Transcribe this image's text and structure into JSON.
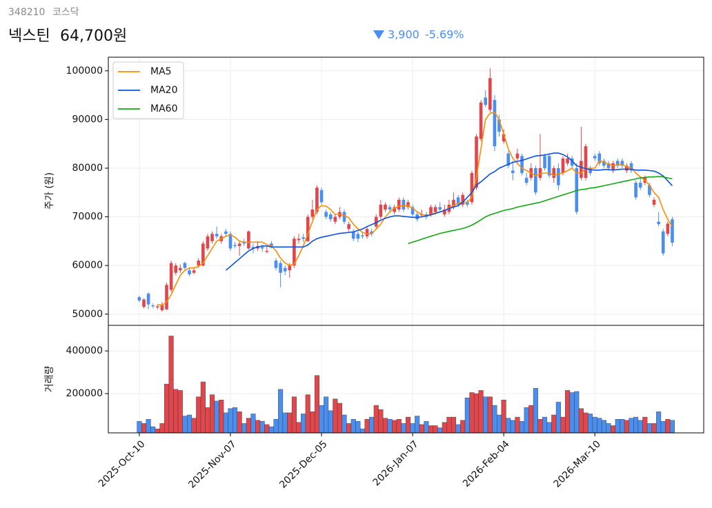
{
  "header": {
    "code": "348210",
    "market": "코스닥",
    "name": "넥스틴",
    "price": "64,700원",
    "change": "3,900",
    "change_pct": "-5.69%"
  },
  "chart_data": {
    "type": "candlestick",
    "ylabel": "주가 (원)",
    "volume_label": "거래량",
    "up_color": "#e0474c",
    "down_color": "#4a8ef0",
    "open": [
      53500,
      51500,
      54200,
      51800,
      51400,
      50800,
      51000,
      55000,
      58500,
      59000,
      60500,
      59000,
      58500,
      60000,
      60000,
      63500,
      65000,
      66500,
      65000,
      67000,
      66500,
      64200,
      64000,
      64800,
      63500,
      63800,
      63500,
      63800,
      62800,
      64500,
      61000,
      60500,
      59500,
      59000,
      60000,
      65200,
      65800,
      65000,
      70000,
      71000,
      75500,
      71000,
      70500,
      69000,
      70000,
      71000,
      67500,
      67000,
      66500,
      66200,
      66000,
      67000,
      68000,
      70000,
      71500,
      72000,
      71000,
      71500,
      73500,
      72000,
      72000,
      70500,
      70300,
      70500,
      70500,
      71000,
      72000,
      70500,
      71000,
      72000,
      74000,
      72500,
      73000,
      73000,
      76000,
      86000,
      94500,
      92000,
      94000,
      90000,
      85500,
      83000,
      79500,
      82000,
      82500,
      78000,
      78000,
      80000,
      78000,
      82500,
      82500,
      78000,
      80000,
      79000,
      81000,
      82000,
      80000,
      78000,
      78000,
      80000,
      82500,
      83000,
      81500,
      81000,
      79500,
      81500,
      81500,
      79500,
      81000,
      77000,
      77000,
      77000,
      76500,
      72500,
      69000,
      67000,
      66500,
      69500
    ],
    "high": [
      53800,
      53300,
      54500,
      52200,
      51900,
      52500,
      56500,
      61000,
      60500,
      60200,
      60800,
      59500,
      59500,
      61500,
      65000,
      66500,
      67000,
      68000,
      66500,
      67500,
      67000,
      64800,
      65000,
      65500,
      67200,
      64500,
      65000,
      64300,
      64000,
      65000,
      61500,
      61000,
      60000,
      60500,
      66000,
      66500,
      66500,
      70500,
      73500,
      76500,
      76000,
      71500,
      71000,
      70500,
      72000,
      71500,
      69000,
      67500,
      67000,
      66800,
      68000,
      67500,
      70500,
      73500,
      73000,
      72500,
      72500,
      74000,
      74000,
      73500,
      72500,
      71000,
      71500,
      71000,
      72500,
      72500,
      73000,
      72500,
      73500,
      75000,
      74500,
      75000,
      73500,
      79500,
      87000,
      94000,
      96000,
      100500,
      95000,
      91000,
      88000,
      83500,
      81500,
      84000,
      83000,
      79000,
      81000,
      80500,
      87000,
      83000,
      83000,
      80500,
      81000,
      82500,
      83000,
      82500,
      81000,
      88500,
      85000,
      80500,
      83000,
      83500,
      82000,
      81500,
      81500,
      82000,
      82000,
      81000,
      81500,
      77500,
      78000,
      78500,
      77000,
      74000,
      71000,
      67500,
      69000,
      70000
    ],
    "low": [
      52500,
      51200,
      51000,
      51300,
      51000,
      50500,
      50800,
      54500,
      58000,
      58500,
      59200,
      57800,
      58200,
      59500,
      59800,
      63000,
      64500,
      65500,
      64500,
      66000,
      63000,
      63500,
      62000,
      64000,
      63300,
      62500,
      63000,
      62800,
      62500,
      63500,
      59000,
      55500,
      58000,
      57500,
      59500,
      64500,
      64800,
      64800,
      69500,
      70500,
      72500,
      69500,
      69000,
      68500,
      69500,
      68500,
      67000,
      65000,
      64800,
      65500,
      65500,
      66000,
      67500,
      69500,
      71000,
      71000,
      70500,
      71000,
      71000,
      71500,
      70000,
      69000,
      70000,
      69500,
      70000,
      70500,
      71000,
      70000,
      70500,
      71500,
      72000,
      72000,
      72000,
      72500,
      75500,
      85500,
      92500,
      91500,
      83500,
      86500,
      85000,
      80000,
      77500,
      81500,
      78500,
      76500,
      77500,
      74500,
      77500,
      79500,
      78000,
      77000,
      75500,
      78500,
      80500,
      80000,
      70500,
      77500,
      77500,
      78500,
      81500,
      80500,
      80000,
      79500,
      79000,
      80000,
      80000,
      79000,
      79000,
      73500,
      75500,
      76500,
      74000,
      72000,
      68000,
      62000,
      66000,
      64000
    ],
    "close": [
      52800,
      53000,
      52000,
      51600,
      51600,
      52000,
      56000,
      60500,
      60000,
      59500,
      59500,
      58200,
      59000,
      61000,
      64500,
      66000,
      66500,
      66000,
      66000,
      66500,
      63500,
      64000,
      64500,
      64500,
      67000,
      63500,
      64000,
      63500,
      63000,
      64000,
      59500,
      58500,
      58800,
      60000,
      65500,
      65500,
      65500,
      70000,
      71500,
      76000,
      73000,
      70000,
      69500,
      70000,
      71000,
      69000,
      68500,
      65500,
      65500,
      66000,
      67500,
      66500,
      70000,
      72500,
      72500,
      71500,
      72000,
      73500,
      71500,
      73000,
      70500,
      69500,
      70500,
      70000,
      72000,
      72000,
      71500,
      71500,
      72500,
      73500,
      72500,
      74500,
      72500,
      79000,
      86500,
      93500,
      93000,
      98500,
      84500,
      87500,
      87000,
      80500,
      79000,
      83000,
      79000,
      77000,
      80000,
      75000,
      80000,
      80000,
      78500,
      80000,
      76500,
      82000,
      82000,
      80500,
      71000,
      81500,
      84500,
      79000,
      82000,
      81000,
      80500,
      80000,
      81000,
      80500,
      80500,
      80500,
      79500,
      74000,
      76000,
      78000,
      74500,
      73500,
      68500,
      62500,
      68600,
      64700
    ],
    "volume": [
      70000,
      60000,
      80000,
      45000,
      35000,
      60000,
      245000,
      470000,
      220000,
      215000,
      95000,
      100000,
      85000,
      185000,
      255000,
      135000,
      195000,
      165000,
      170000,
      110000,
      130000,
      135000,
      115000,
      60000,
      85000,
      105000,
      75000,
      70000,
      55000,
      45000,
      80000,
      220000,
      110000,
      110000,
      185000,
      65000,
      105000,
      195000,
      115000,
      285000,
      145000,
      185000,
      120000,
      175000,
      155000,
      100000,
      60000,
      80000,
      70000,
      35000,
      80000,
      90000,
      145000,
      125000,
      85000,
      80000,
      75000,
      80000,
      60000,
      90000,
      60000,
      95000,
      55000,
      70000,
      50000,
      50000,
      40000,
      65000,
      90000,
      90000,
      55000,
      75000,
      180000,
      205000,
      200000,
      215000,
      185000,
      185000,
      145000,
      100000,
      170000,
      85000,
      75000,
      90000,
      70000,
      135000,
      145000,
      225000,
      80000,
      90000,
      65000,
      100000,
      160000,
      90000,
      215000,
      205000,
      210000,
      130000,
      110000,
      105000,
      90000,
      85000,
      75000,
      60000,
      50000,
      80000,
      80000,
      75000,
      85000,
      90000,
      75000,
      90000,
      60000,
      60000,
      115000,
      70000,
      80000,
      75000
    ],
    "series": [
      {
        "name": "MA5",
        "color": "#ff8c00",
        "values": [
          null,
          null,
          null,
          null,
          52000,
          51800,
          52500,
          54000,
          56000,
          58000,
          59000,
          59500,
          59500,
          59800,
          60500,
          62000,
          63500,
          65000,
          65500,
          66000,
          66300,
          65800,
          65000,
          64800,
          64800,
          64800,
          64800,
          64800,
          64300,
          64000,
          63000,
          61500,
          60500,
          60000,
          60300,
          62000,
          64000,
          66500,
          69000,
          71500,
          72300,
          72200,
          71500,
          70500,
          70500,
          70300,
          69800,
          68500,
          67500,
          66800,
          66500,
          66500,
          67500,
          68500,
          70000,
          71000,
          71800,
          72200,
          72300,
          72300,
          71800,
          71000,
          70500,
          70200,
          70500,
          70800,
          71000,
          71300,
          71800,
          72300,
          72800,
          73000,
          73000,
          74000,
          78000,
          84000,
          90000,
          91300,
          91500,
          90000,
          87000,
          84000,
          82000,
          81000,
          80000,
          79500,
          79000,
          78500,
          78800,
          79000,
          79000,
          78500,
          78800,
          79000,
          79500,
          80000,
          79000,
          79000,
          80000,
          80000,
          80000,
          81500,
          81300,
          80800,
          80500,
          80700,
          80700,
          80300,
          80000,
          79000,
          78200,
          77500,
          76500,
          75000,
          74000,
          71500,
          69500,
          68000
        ]
      },
      {
        "name": "MA20",
        "color": "#0a50e6",
        "values": [
          null,
          null,
          null,
          null,
          null,
          null,
          null,
          null,
          null,
          null,
          null,
          null,
          null,
          null,
          null,
          null,
          null,
          null,
          null,
          59000,
          59800,
          60600,
          61400,
          62200,
          63000,
          63500,
          63800,
          64000,
          64000,
          63800,
          63800,
          63800,
          63800,
          63800,
          63800,
          63800,
          63800,
          64200,
          65000,
          65500,
          65800,
          66000,
          66200,
          66400,
          66600,
          66700,
          66800,
          66900,
          67200,
          67500,
          68000,
          68400,
          68800,
          69300,
          69700,
          70000,
          70200,
          70200,
          70100,
          70000,
          69900,
          69900,
          70000,
          70200,
          70400,
          70700,
          71000,
          71300,
          71700,
          72000,
          72300,
          73000,
          74000,
          75000,
          76500,
          77200,
          78000,
          78800,
          79300,
          80000,
          80400,
          80800,
          81200,
          81400,
          81600,
          81900,
          82200,
          82500,
          82600,
          82700,
          82900,
          83100,
          83100,
          82800,
          82300,
          81500,
          80500,
          80200,
          79900,
          79700,
          79600,
          79600,
          79700,
          79700,
          79600,
          79700,
          79800,
          79800,
          79800,
          79600,
          79600,
          79600,
          79500,
          79400,
          79000,
          78400,
          77400,
          76400
        ]
      },
      {
        "name": "MA60",
        "color": "#10a810",
        "values": [
          null,
          null,
          null,
          null,
          null,
          null,
          null,
          null,
          null,
          null,
          null,
          null,
          null,
          null,
          null,
          null,
          null,
          null,
          null,
          null,
          null,
          null,
          null,
          null,
          null,
          null,
          null,
          null,
          null,
          null,
          null,
          null,
          null,
          null,
          null,
          null,
          null,
          null,
          null,
          null,
          null,
          null,
          null,
          null,
          null,
          null,
          null,
          null,
          null,
          null,
          null,
          null,
          null,
          null,
          null,
          null,
          null,
          null,
          null,
          64500,
          64800,
          65100,
          65400,
          65700,
          66000,
          66300,
          66600,
          66800,
          67000,
          67200,
          67400,
          67600,
          67900,
          68300,
          68800,
          69400,
          70000,
          70400,
          70700,
          71000,
          71300,
          71500,
          71700,
          72000,
          72200,
          72400,
          72600,
          72800,
          73000,
          73300,
          73600,
          73900,
          74200,
          74500,
          74800,
          75100,
          75400,
          75600,
          75700,
          75900,
          76000,
          76200,
          76400,
          76600,
          76800,
          77000,
          77200,
          77400,
          77600,
          77800,
          78000,
          78100,
          78200,
          78200,
          78300,
          78200,
          78000,
          77800
        ]
      }
    ],
    "xlim": [
      -6.8,
      123.9
    ],
    "xticks": [
      {
        "value": 0,
        "label": "2025-Oct-10"
      },
      {
        "value": 20,
        "label": "2025-Nov-07"
      },
      {
        "value": 40,
        "label": "2025-Dec-05"
      },
      {
        "value": 60,
        "label": "2026-Jan-07"
      },
      {
        "value": 80,
        "label": "2026-Feb-04"
      },
      {
        "value": 100,
        "label": "2026-Mar-10"
      }
    ],
    "ylim": [
      47700,
      102800
    ],
    "yticks": [
      50000,
      60000,
      70000,
      80000,
      90000,
      100000
    ],
    "volume_ylim": [
      16000,
      520000
    ],
    "volume_yticks": [
      200000,
      400000
    ],
    "grid": true,
    "legend": "upper left"
  }
}
